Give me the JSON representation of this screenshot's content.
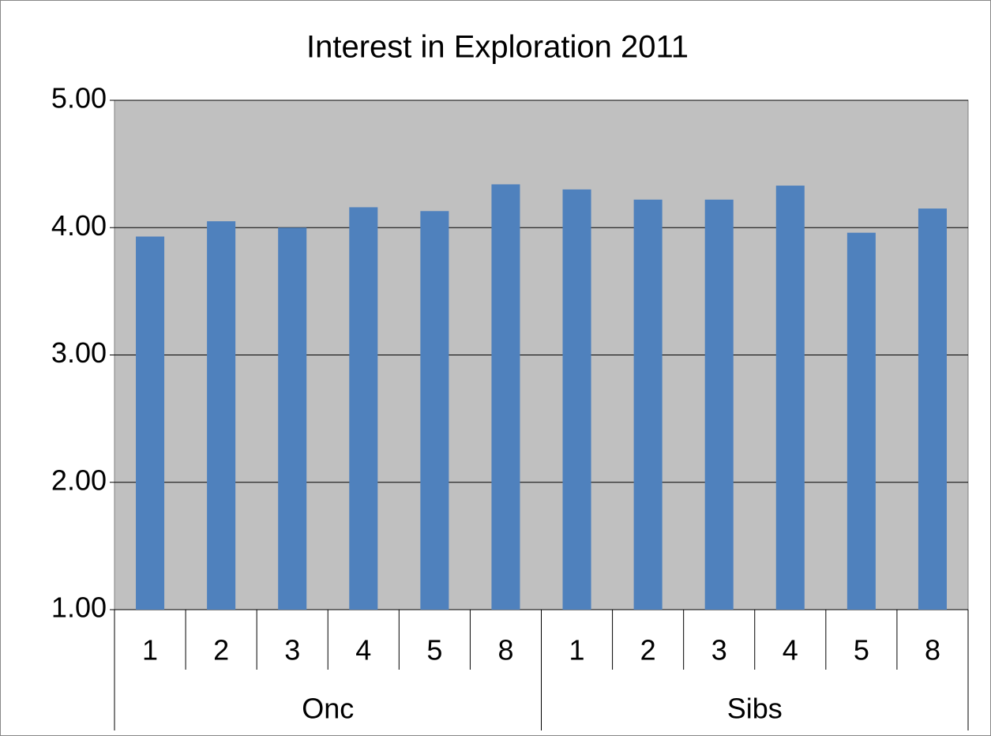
{
  "chart_data": {
    "type": "bar",
    "title": "Interest in Exploration 2011",
    "categories": [
      "1",
      "2",
      "3",
      "4",
      "5",
      "8",
      "1",
      "2",
      "3",
      "4",
      "5",
      "8"
    ],
    "groups": [
      "Onc",
      "Sibs"
    ],
    "values": [
      3.93,
      4.05,
      4.0,
      4.16,
      4.13,
      4.34,
      4.3,
      4.22,
      4.22,
      4.33,
      3.96,
      4.15
    ],
    "color": "#4f81bd",
    "ylim": [
      1,
      5
    ],
    "yticks": [
      {
        "value": 1,
        "label": "1.00"
      },
      {
        "value": 2,
        "label": "2.00"
      },
      {
        "value": 3,
        "label": "3.00"
      },
      {
        "value": 4,
        "label": "4.00"
      },
      {
        "value": 5,
        "label": "5.00"
      }
    ],
    "grid": true
  }
}
